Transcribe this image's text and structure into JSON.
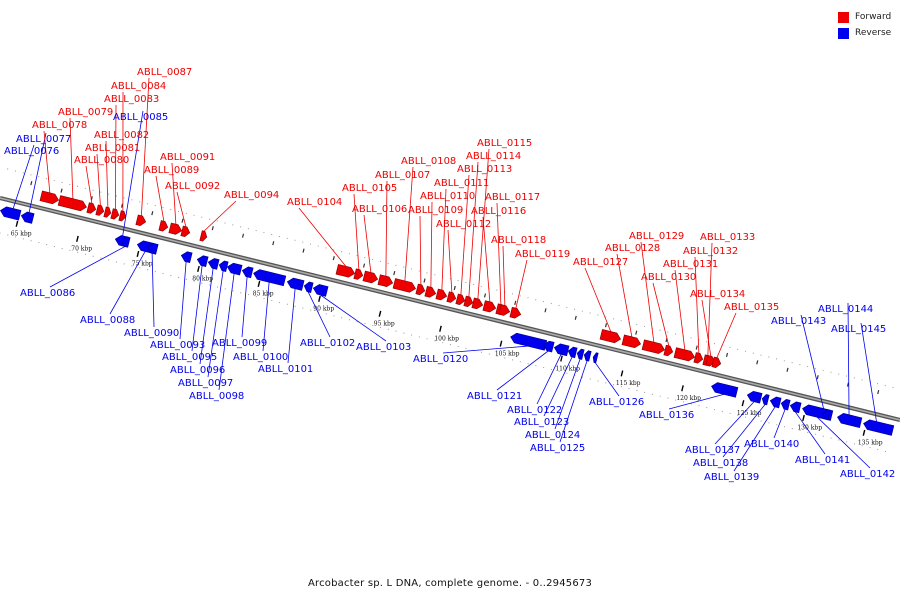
{
  "caption": "Arcobacter sp. L DNA, complete genome. - 0..2945673",
  "legend": [
    {
      "label": "Forward",
      "color": "#ee0000"
    },
    {
      "label": "Reverse",
      "color": "#0000ee"
    }
  ],
  "colors": {
    "forward": "#ee0000",
    "reverse": "#0000ee",
    "backbone": "#888888"
  },
  "scale": [
    {
      "label": "65 kbp",
      "kbp": 65
    },
    {
      "label": "70 kbp",
      "kbp": 70
    },
    {
      "label": "75 kbp",
      "kbp": 75
    },
    {
      "label": "80 kbp",
      "kbp": 80
    },
    {
      "label": "85 kbp",
      "kbp": 85
    },
    {
      "label": "90 kbp",
      "kbp": 90
    },
    {
      "label": "95 kbp",
      "kbp": 95
    },
    {
      "label": "100 kbp",
      "kbp": 100
    },
    {
      "label": "105 kbp",
      "kbp": 105
    },
    {
      "label": "110 kbp",
      "kbp": 110
    },
    {
      "label": "115 kbp",
      "kbp": 115
    },
    {
      "label": "120 kbp",
      "kbp": 120
    },
    {
      "label": "125 kbp",
      "kbp": 125
    },
    {
      "label": "130 kbp",
      "kbp": 130
    },
    {
      "label": "135 kbp",
      "kbp": 135
    }
  ],
  "genes": [
    {
      "name": "ABLL_0076",
      "strand": "reverse"
    },
    {
      "name": "ABLL_0077",
      "strand": "reverse"
    },
    {
      "name": "ABLL_0078",
      "strand": "forward"
    },
    {
      "name": "ABLL_0079",
      "strand": "forward"
    },
    {
      "name": "ABLL_0080",
      "strand": "forward"
    },
    {
      "name": "ABLL_0081",
      "strand": "forward"
    },
    {
      "name": "ABLL_0082",
      "strand": "forward"
    },
    {
      "name": "ABLL_0083",
      "strand": "forward"
    },
    {
      "name": "ABLL_0084",
      "strand": "forward"
    },
    {
      "name": "ABLL_0085",
      "strand": "reverse"
    },
    {
      "name": "ABLL_0086",
      "strand": "reverse"
    },
    {
      "name": "ABLL_0087",
      "strand": "forward"
    },
    {
      "name": "ABLL_0088",
      "strand": "reverse"
    },
    {
      "name": "ABLL_0089",
      "strand": "forward"
    },
    {
      "name": "ABLL_0090",
      "strand": "reverse"
    },
    {
      "name": "ABLL_0091",
      "strand": "forward"
    },
    {
      "name": "ABLL_0092",
      "strand": "forward"
    },
    {
      "name": "ABLL_0093",
      "strand": "reverse"
    },
    {
      "name": "ABLL_0094",
      "strand": "forward"
    },
    {
      "name": "ABLL_0095",
      "strand": "reverse"
    },
    {
      "name": "ABLL_0096",
      "strand": "reverse"
    },
    {
      "name": "ABLL_0097",
      "strand": "reverse"
    },
    {
      "name": "ABLL_0098",
      "strand": "reverse"
    },
    {
      "name": "ABLL_0099",
      "strand": "reverse"
    },
    {
      "name": "ABLL_0100",
      "strand": "reverse"
    },
    {
      "name": "ABLL_0101",
      "strand": "reverse"
    },
    {
      "name": "ABLL_0102",
      "strand": "reverse"
    },
    {
      "name": "ABLL_0103",
      "strand": "reverse"
    },
    {
      "name": "ABLL_0104",
      "strand": "forward"
    },
    {
      "name": "ABLL_0105",
      "strand": "forward"
    },
    {
      "name": "ABLL_0106",
      "strand": "forward"
    },
    {
      "name": "ABLL_0107",
      "strand": "forward"
    },
    {
      "name": "ABLL_0108",
      "strand": "forward"
    },
    {
      "name": "ABLL_0109",
      "strand": "forward"
    },
    {
      "name": "ABLL_0110",
      "strand": "forward"
    },
    {
      "name": "ABLL_0111",
      "strand": "forward"
    },
    {
      "name": "ABLL_0112",
      "strand": "forward"
    },
    {
      "name": "ABLL_0113",
      "strand": "forward"
    },
    {
      "name": "ABLL_0114",
      "strand": "forward"
    },
    {
      "name": "ABLL_0115",
      "strand": "forward"
    },
    {
      "name": "ABLL_0116",
      "strand": "forward"
    },
    {
      "name": "ABLL_0117",
      "strand": "forward"
    },
    {
      "name": "ABLL_0118",
      "strand": "forward"
    },
    {
      "name": "ABLL_0119",
      "strand": "forward"
    },
    {
      "name": "ABLL_0120",
      "strand": "reverse"
    },
    {
      "name": "ABLL_0121",
      "strand": "reverse"
    },
    {
      "name": "ABLL_0122",
      "strand": "reverse"
    },
    {
      "name": "ABLL_0123",
      "strand": "reverse"
    },
    {
      "name": "ABLL_0124",
      "strand": "reverse"
    },
    {
      "name": "ABLL_0125",
      "strand": "reverse"
    },
    {
      "name": "ABLL_0126",
      "strand": "reverse"
    },
    {
      "name": "ABLL_0127",
      "strand": "forward"
    },
    {
      "name": "ABLL_0128",
      "strand": "forward"
    },
    {
      "name": "ABLL_0129",
      "strand": "forward"
    },
    {
      "name": "ABLL_0130",
      "strand": "forward"
    },
    {
      "name": "ABLL_0131",
      "strand": "forward"
    },
    {
      "name": "ABLL_0132",
      "strand": "forward"
    },
    {
      "name": "ABLL_0133",
      "strand": "forward"
    },
    {
      "name": "ABLL_0134",
      "strand": "forward"
    },
    {
      "name": "ABLL_0135",
      "strand": "forward"
    },
    {
      "name": "ABLL_0136",
      "strand": "reverse"
    },
    {
      "name": "ABLL_0137",
      "strand": "reverse"
    },
    {
      "name": "ABLL_0138",
      "strand": "reverse"
    },
    {
      "name": "ABLL_0139",
      "strand": "reverse"
    },
    {
      "name": "ABLL_0140",
      "strand": "reverse"
    },
    {
      "name": "ABLL_0141",
      "strand": "reverse"
    },
    {
      "name": "ABLL_0142",
      "strand": "reverse"
    },
    {
      "name": "ABLL_0143",
      "strand": "reverse"
    },
    {
      "name": "ABLL_0144",
      "strand": "reverse"
    },
    {
      "name": "ABLL_0145",
      "strand": "reverse"
    }
  ]
}
